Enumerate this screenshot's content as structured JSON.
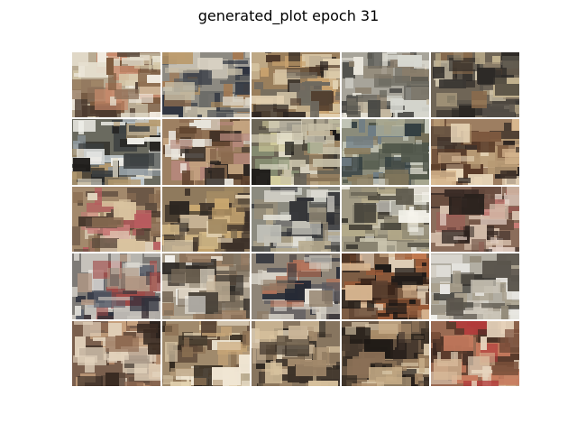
{
  "figure": {
    "title": "generated_plot epoch 31"
  },
  "grid": {
    "rows": 5,
    "cols": 5,
    "tiles": [
      {
        "base": "#b9ab93",
        "palette": [
          "#e6e0cf",
          "#7c5a3e",
          "#4b3a2e",
          "#c98a6c",
          "#d6c8a8",
          "#8a6f58",
          "#f1ebe0"
        ]
      },
      {
        "base": "#8d8a82",
        "palette": [
          "#55595e",
          "#c9c0aa",
          "#2f3540",
          "#a47a52",
          "#d9d2c3",
          "#6b6a67",
          "#b9935f"
        ]
      },
      {
        "base": "#9a7f5c",
        "palette": [
          "#c9a36f",
          "#4e3a2a",
          "#6f6a60",
          "#d4c2a0",
          "#2c2520",
          "#a88766",
          "#e2d1b2"
        ]
      },
      {
        "base": "#a7a49a",
        "palette": [
          "#d7d8d1",
          "#4a4a46",
          "#6d6a60",
          "#e9e6dc",
          "#8a7d6a",
          "#c5b9a1",
          "#2f2f2c"
        ]
      },
      {
        "base": "#6f6556",
        "palette": [
          "#3a3733",
          "#9b8c73",
          "#c2b28f",
          "#58524a",
          "#d7ccb2",
          "#2a2724",
          "#8a6b4c"
        ]
      },
      {
        "base": "#6a6a5f",
        "palette": [
          "#1e1c1a",
          "#c9d1d6",
          "#8f9aa1",
          "#e7e2d2",
          "#3b3f40",
          "#b59a6f",
          "#f0efe9"
        ]
      },
      {
        "base": "#9d8062",
        "palette": [
          "#e8e4dc",
          "#5a3e2a",
          "#c4a480",
          "#2e2621",
          "#f5f1ea",
          "#8b6b50",
          "#b4877a"
        ]
      },
      {
        "base": "#6b6556",
        "palette": [
          "#1d1b19",
          "#c8c0a8",
          "#8e9a7b",
          "#e7e2cf",
          "#4a443a",
          "#a58964",
          "#d6cf9f"
        ]
      },
      {
        "base": "#8b8c7b",
        "palette": [
          "#c9ccbf",
          "#50564a",
          "#2f3b3f",
          "#e3e2d6",
          "#8a7d60",
          "#b4b49b",
          "#6e7d86"
        ]
      },
      {
        "base": "#9d7e61",
        "palette": [
          "#5a3b28",
          "#d9b890",
          "#2c2420",
          "#e8d6b9",
          "#7e5a40",
          "#b79a74",
          "#3f3129"
        ]
      },
      {
        "base": "#a3896c",
        "palette": [
          "#c97d7a",
          "#4a3a2e",
          "#e1d3bc",
          "#8a6d52",
          "#b85b5e",
          "#d9c39f",
          "#5e4c3e"
        ]
      },
      {
        "base": "#8f7a5d",
        "palette": [
          "#c9a76f",
          "#3d3129",
          "#e0cfb0",
          "#6b5b47",
          "#a48b63",
          "#2b2520",
          "#d2b887"
        ]
      },
      {
        "base": "#8c8b80",
        "palette": [
          "#c5c6be",
          "#4b4b48",
          "#2f3034",
          "#e4e2d9",
          "#9b8f77",
          "#6a6b6a",
          "#b6a98c"
        ]
      },
      {
        "base": "#a39c86",
        "palette": [
          "#ecebe2",
          "#5f5b4e",
          "#c9c3ad",
          "#8a8471",
          "#f5f3ec",
          "#3a372f",
          "#b4aa8a"
        ]
      },
      {
        "base": "#8b6d5b",
        "palette": [
          "#c77c75",
          "#3b2c26",
          "#d6c0ad",
          "#6a4e40",
          "#e2cfc4",
          "#9c5d55",
          "#2a211d"
        ]
      },
      {
        "base": "#7e7b77",
        "palette": [
          "#2b2f3b",
          "#c8c4bd",
          "#a04a47",
          "#e5e2dc",
          "#5a5f6b",
          "#b59a86",
          "#40363a"
        ]
      },
      {
        "base": "#a69b89",
        "palette": [
          "#f3f1ec",
          "#4b443b",
          "#c8b89d",
          "#7a6c5a",
          "#2f2b26",
          "#e0d6c5",
          "#9a7d62"
        ]
      },
      {
        "base": "#8f8578",
        "palette": [
          "#262a35",
          "#d6d1c6",
          "#b27158",
          "#5b5a5e",
          "#e9e5dc",
          "#8e7b66",
          "#3f3a3b"
        ]
      },
      {
        "base": "#7d5d44",
        "palette": [
          "#3a251a",
          "#c47b4f",
          "#1f1a17",
          "#d8b691",
          "#9b5a37",
          "#e7d7c0",
          "#5e4332"
        ]
      },
      {
        "base": "#b2aea3",
        "palette": [
          "#e8e7e2",
          "#5a554c",
          "#cfc9bc",
          "#8f8675",
          "#f2f1ee",
          "#3a3833",
          "#a89f8c"
        ]
      },
      {
        "base": "#7a5f4d",
        "palette": [
          "#3a2b22",
          "#c8a27f",
          "#e3d3bd",
          "#8f6a52",
          "#2a211c",
          "#b58a6a",
          "#5a463a"
        ]
      },
      {
        "base": "#a08a6c",
        "palette": [
          "#e3d3b2",
          "#5a4535",
          "#c8a677",
          "#33291f",
          "#f0e6d3",
          "#8a6f52",
          "#b59b7a"
        ]
      },
      {
        "base": "#87755f",
        "palette": [
          "#3b3128",
          "#c9b497",
          "#6a5a48",
          "#e0d1b8",
          "#a2896b",
          "#2a241f",
          "#d9c39f"
        ]
      },
      {
        "base": "#6b5845",
        "palette": [
          "#2b231d",
          "#a88a68",
          "#d9c7a9",
          "#4d3f33",
          "#8a7056",
          "#1f1a16",
          "#c7ad88"
        ]
      },
      {
        "base": "#9a6b53",
        "palette": [
          "#b23a3a",
          "#5a3b2c",
          "#d9b896",
          "#3a2820",
          "#c77b5e",
          "#e6d4bd",
          "#7a4f3a"
        ]
      }
    ]
  }
}
